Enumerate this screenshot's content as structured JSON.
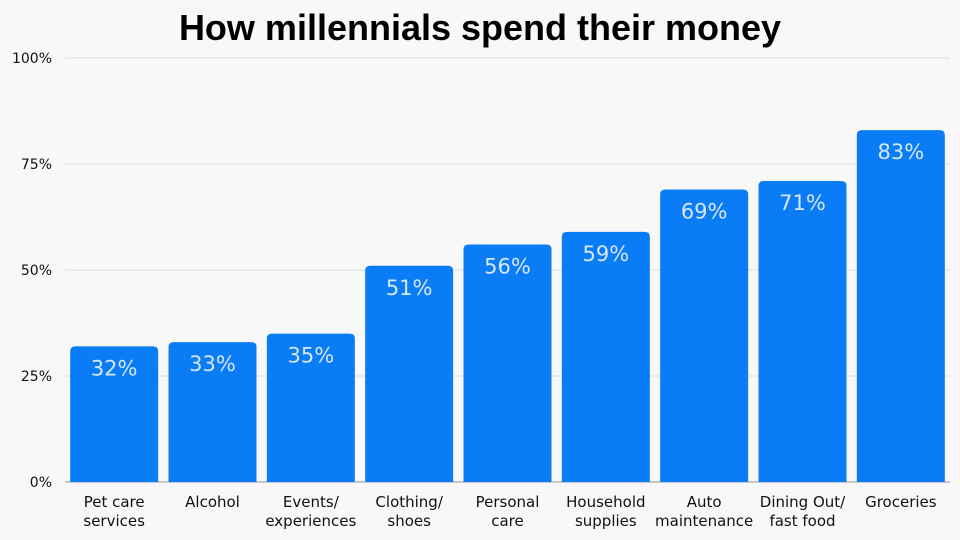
{
  "chart_data": {
    "type": "bar",
    "title": "How millennials spend their money",
    "categories": [
      [
        "Pet care",
        "services"
      ],
      [
        "Alcohol"
      ],
      [
        "Events/",
        "experiences"
      ],
      [
        "Clothing/",
        "shoes"
      ],
      [
        "Personal",
        "care"
      ],
      [
        "Household",
        "supplies"
      ],
      [
        "Auto",
        "maintenance"
      ],
      [
        "Dining Out/",
        "fast food"
      ],
      [
        "Groceries"
      ]
    ],
    "values": [
      32,
      33,
      35,
      51,
      56,
      59,
      69,
      71,
      83
    ],
    "value_labels": [
      "32%",
      "33%",
      "35%",
      "51%",
      "56%",
      "59%",
      "69%",
      "71%",
      "83%"
    ],
    "ylim": [
      0,
      100
    ],
    "yticks": [
      0,
      25,
      50,
      75,
      100
    ],
    "ytick_labels": [
      "0%",
      "25%",
      "50%",
      "75%",
      "100%"
    ],
    "grid": true,
    "colors": {
      "bar": "#0a7cf5",
      "value_label": "#d6e6fb",
      "grid": "#dcdcdc",
      "background": "#f8f8f8"
    }
  }
}
